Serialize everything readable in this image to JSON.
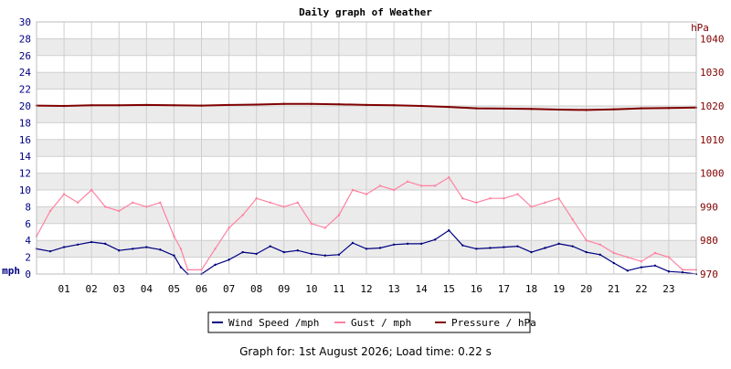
{
  "page": {
    "title": "Daily graph of Weather",
    "footer": "Graph for: 1st August 2026; Load time: 0.22 s",
    "colors": {
      "background": "#ffffff",
      "band": "#ebebeb",
      "grid": "#cfcfcf",
      "left_axis_text": "#000080",
      "right_axis_text": "#800000"
    }
  },
  "chart_data": {
    "type": "line",
    "title": "Daily graph of Weather",
    "xlabel": "",
    "x_ticks": [
      "01",
      "02",
      "03",
      "04",
      "05",
      "06",
      "07",
      "08",
      "09",
      "10",
      "11",
      "12",
      "13",
      "14",
      "15",
      "16",
      "17",
      "18",
      "19",
      "20",
      "21",
      "22",
      "23"
    ],
    "xlim": [
      0,
      24
    ],
    "y_left": {
      "label": "mph",
      "lim": [
        0,
        30
      ],
      "ticks": [
        0,
        2,
        4,
        6,
        8,
        10,
        12,
        14,
        16,
        18,
        20,
        22,
        24,
        26,
        28,
        30
      ]
    },
    "y_right": {
      "label": "hPa",
      "lim": [
        970,
        1045
      ],
      "ticks": [
        970,
        980,
        990,
        1000,
        1010,
        1020,
        1030,
        1040
      ]
    },
    "grid": true,
    "legend_position": "bottom-center",
    "series": [
      {
        "name": "Wind Speed /mph",
        "axis": "left",
        "color": "#000080",
        "x": [
          0.0,
          0.5,
          1.0,
          1.5,
          2.0,
          2.5,
          3.0,
          3.5,
          4.0,
          4.5,
          5.0,
          5.25,
          5.5,
          6.0,
          6.5,
          7.0,
          7.5,
          8.0,
          8.5,
          9.0,
          9.5,
          10.0,
          10.5,
          11.0,
          11.5,
          12.0,
          12.5,
          13.0,
          13.5,
          14.0,
          14.5,
          15.0,
          15.5,
          16.0,
          16.5,
          17.0,
          17.5,
          18.0,
          18.5,
          19.0,
          19.5,
          20.0,
          20.5,
          21.0,
          21.5,
          22.0,
          22.5,
          23.0,
          23.5,
          24.0
        ],
        "values": [
          3.0,
          2.7,
          3.2,
          3.5,
          3.8,
          3.6,
          2.8,
          3.0,
          3.2,
          2.9,
          2.2,
          0.8,
          0.0,
          0.0,
          1.1,
          1.7,
          2.6,
          2.4,
          3.3,
          2.6,
          2.8,
          2.4,
          2.2,
          2.3,
          3.7,
          3.0,
          3.1,
          3.5,
          3.6,
          3.6,
          4.1,
          5.2,
          3.4,
          3.0,
          3.1,
          3.2,
          3.3,
          2.6,
          3.1,
          3.6,
          3.3,
          2.6,
          2.3,
          1.3,
          0.4,
          0.8,
          1.0,
          0.3,
          0.2,
          0.0
        ]
      },
      {
        "name": "Gust / mph",
        "axis": "left",
        "color": "#ff80a0",
        "x": [
          0.0,
          0.5,
          1.0,
          1.5,
          2.0,
          2.5,
          3.0,
          3.5,
          4.0,
          4.5,
          5.0,
          5.25,
          5.5,
          6.0,
          6.5,
          7.0,
          7.5,
          8.0,
          8.5,
          9.0,
          9.5,
          10.0,
          10.5,
          11.0,
          11.5,
          12.0,
          12.5,
          13.0,
          13.5,
          14.0,
          14.5,
          15.0,
          15.5,
          16.0,
          16.5,
          17.0,
          17.5,
          18.0,
          18.5,
          19.0,
          19.5,
          20.0,
          20.5,
          21.0,
          21.5,
          22.0,
          22.5,
          23.0,
          23.5,
          24.0
        ],
        "values": [
          4.5,
          7.5,
          9.5,
          8.5,
          10.0,
          8.0,
          7.5,
          8.5,
          8.0,
          8.5,
          4.5,
          3.0,
          0.5,
          0.5,
          3.0,
          5.5,
          7.0,
          9.0,
          8.5,
          8.0,
          8.5,
          6.0,
          5.5,
          7.0,
          10.0,
          9.5,
          10.5,
          10.0,
          11.0,
          10.5,
          10.5,
          11.5,
          9.0,
          8.5,
          9.0,
          9.0,
          9.5,
          8.0,
          8.5,
          9.0,
          6.5,
          4.0,
          3.5,
          2.5,
          2.0,
          1.5,
          2.5,
          2.0,
          0.5,
          0.5
        ]
      },
      {
        "name": "Pressure / hPa",
        "axis": "right",
        "color": "#800000",
        "x": [
          0,
          1,
          2,
          3,
          4,
          5,
          6,
          7,
          8,
          9,
          10,
          11,
          12,
          13,
          14,
          15,
          16,
          17,
          18,
          19,
          20,
          21,
          22,
          23,
          24
        ],
        "values": [
          1020.1,
          1020.0,
          1020.2,
          1020.2,
          1020.3,
          1020.2,
          1020.1,
          1020.3,
          1020.4,
          1020.6,
          1020.6,
          1020.5,
          1020.3,
          1020.2,
          1020.0,
          1019.7,
          1019.3,
          1019.2,
          1019.1,
          1018.9,
          1018.8,
          1019.0,
          1019.3,
          1019.4,
          1019.5
        ]
      }
    ]
  }
}
